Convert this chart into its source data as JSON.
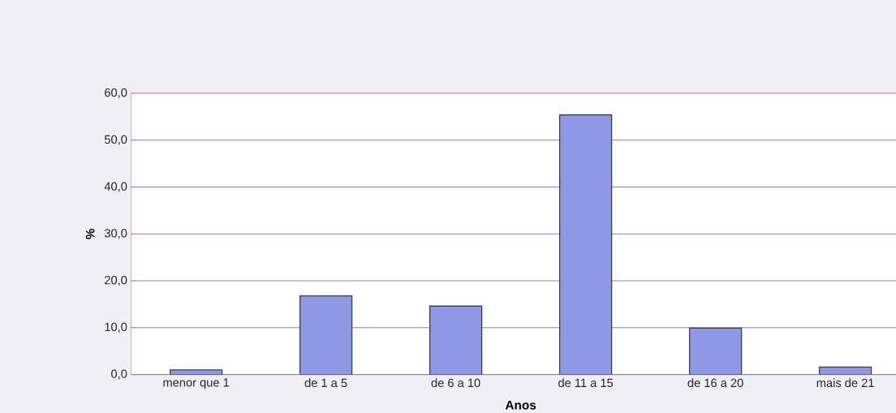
{
  "chart_data": {
    "type": "bar",
    "xlabel": "Anos",
    "ylabel": "%",
    "categories": [
      "menor que 1",
      "de 1 a 5",
      "de 6 a 10",
      "de 11 a 15",
      "de 16 a 20",
      "mais de 21"
    ],
    "values": [
      1.0,
      16.8,
      14.6,
      55.4,
      9.9,
      1.6
    ],
    "color": "#8e98e6",
    "ylim": [
      0,
      60
    ],
    "yticks": [
      {
        "value": 0,
        "label": "0,0"
      },
      {
        "value": 10,
        "label": "10,0"
      },
      {
        "value": 20,
        "label": "20,0"
      },
      {
        "value": 30,
        "label": "30,0"
      },
      {
        "value": 40,
        "label": "40,0"
      },
      {
        "value": 50,
        "label": "50,0"
      },
      {
        "value": 60,
        "label": "60,0"
      }
    ],
    "grid": "y"
  }
}
